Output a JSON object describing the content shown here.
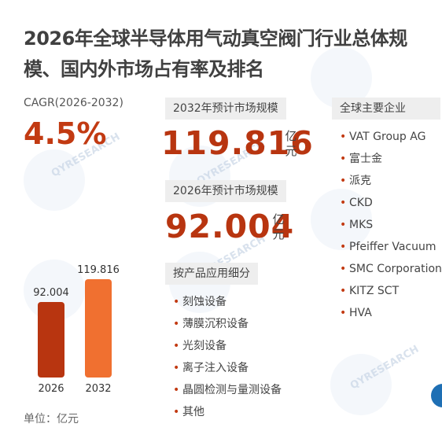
{
  "title": "2026年全球半导体用气动真空阀门行业总体规模、国内外市场占有率及排名",
  "cagr": {
    "label": "CAGR(2026-2032)",
    "value": "4.5%"
  },
  "forecast_2032": {
    "label": "2032年预计市场规模",
    "value": "119.816",
    "unit": "亿元"
  },
  "forecast_2026": {
    "label": "2026年预计市场规模",
    "value": "92.004",
    "unit": "亿元"
  },
  "segments": {
    "label": "按产品应用细分",
    "items": [
      "刻蚀设备",
      "薄膜沉积设备",
      "光刻设备",
      "离子注入设备",
      "晶圆检测与量测设备",
      "其他"
    ]
  },
  "companies": {
    "label": "全球主要企业",
    "items": [
      "VAT Group AG",
      "富士金",
      "派克",
      "CKD",
      "MKS",
      "Pfeiffer Vacuum",
      "SMC Corporation",
      "KITZ SCT",
      "HVA"
    ]
  },
  "unit_note": "单位：亿元",
  "watermark": "QYRESEARCH",
  "colors": {
    "accent": "#c23a12",
    "bar_2026": "#b83510",
    "bar_2032": "#f07030",
    "label_bg": "#eeeeee"
  },
  "chart_data": {
    "type": "bar",
    "categories": [
      "2026",
      "2032"
    ],
    "values": [
      92.004,
      119.816
    ],
    "value_labels": [
      "92.004",
      "119.816"
    ],
    "colors": [
      "#b83510",
      "#f07030"
    ],
    "title": "",
    "xlabel": "",
    "ylabel": "",
    "ylim": [
      0,
      119.816
    ]
  }
}
